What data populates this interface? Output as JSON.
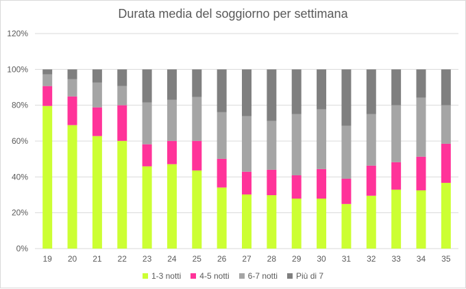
{
  "chart_data": {
    "type": "bar",
    "stacked": true,
    "title": "Durata media del soggiorno per settimana",
    "xlabel": "",
    "ylabel": "",
    "ylim": [
      0,
      120
    ],
    "y_ticks": [
      "0%",
      "20%",
      "40%",
      "60%",
      "80%",
      "100%",
      "120%"
    ],
    "grid": true,
    "legend_position": "bottom",
    "categories": [
      "19",
      "20",
      "21",
      "22",
      "23",
      "24",
      "25",
      "26",
      "27",
      "28",
      "29",
      "30",
      "31",
      "32",
      "33",
      "34",
      "35"
    ],
    "series": [
      {
        "name": "1-3 notti",
        "color": "#ccff33",
        "values": [
          79.6,
          68.9,
          62.8,
          60.1,
          45.9,
          47.1,
          43.6,
          34.1,
          30.2,
          29.8,
          27.9,
          27.9,
          24.9,
          29.5,
          32.9,
          32.5,
          36.7
        ]
      },
      {
        "name": "4-5 notti",
        "color": "#ff3399",
        "values": [
          11.1,
          16.0,
          16.0,
          19.9,
          12.3,
          13.0,
          16.5,
          16.0,
          12.7,
          14.2,
          13.0,
          16.5,
          14.1,
          16.8,
          15.3,
          18.8,
          21.8
        ]
      },
      {
        "name": "6-7 notti",
        "color": "#a5a5a5",
        "values": [
          6.5,
          9.6,
          13.8,
          10.7,
          23.3,
          22.9,
          24.5,
          26.0,
          31.0,
          27.2,
          34.1,
          33.3,
          29.5,
          28.7,
          31.8,
          32.9,
          21.5
        ]
      },
      {
        "name": "Più di 7",
        "color": "#7f7f7f",
        "values": [
          2.8,
          5.5,
          7.4,
          9.3,
          18.5,
          17.0,
          15.4,
          23.9,
          26.1,
          28.8,
          25.0,
          22.3,
          31.5,
          25.0,
          20.0,
          15.8,
          20.0
        ]
      }
    ]
  }
}
